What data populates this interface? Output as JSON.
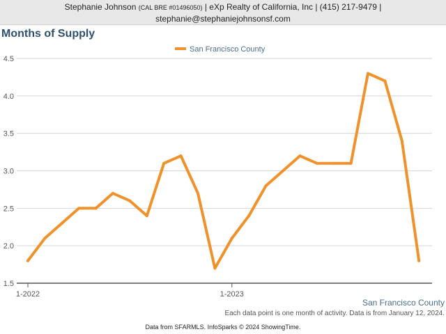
{
  "header": {
    "name": "Stephanie Johnson",
    "license": "(CAL BRE #01496050)",
    "rest_line1": "| eXp Realty of California, Inc | (415) 217-9479 |",
    "email": "stephanie@stephaniejohnsonsf.com"
  },
  "page_title": "Months of Supply",
  "region_label": "San Francisco County",
  "note": "Each data point is one month of activity. Data is from January 12, 2024.",
  "footer": "Data from SFARMLS. InfoSparks © 2024 ShowingTime.",
  "colors": {
    "series": "#f0922b",
    "grid": "#d4d4d4",
    "axis": "#555555"
  },
  "chart_data": {
    "type": "line",
    "title": "Months of Supply",
    "x": [
      "2022-01",
      "2022-02",
      "2022-03",
      "2022-04",
      "2022-05",
      "2022-06",
      "2022-07",
      "2022-08",
      "2022-09",
      "2022-10",
      "2022-11",
      "2022-12",
      "2023-01",
      "2023-02",
      "2023-03",
      "2023-04",
      "2023-05",
      "2023-06",
      "2023-07",
      "2023-08",
      "2023-09",
      "2023-10",
      "2023-11",
      "2023-12"
    ],
    "x_tick_labels": [
      {
        "x": "2022-01",
        "label": "1-2022"
      },
      {
        "x": "2023-01",
        "label": "1-2023"
      }
    ],
    "y_ticks": [
      "1.5",
      "2.0",
      "2.5",
      "3.0",
      "3.5",
      "4.0",
      "4.5"
    ],
    "ylim": [
      1.5,
      4.5
    ],
    "grid": true,
    "legend_position": "top-center",
    "series": [
      {
        "name": "San Francisco County",
        "values": [
          1.8,
          2.1,
          2.3,
          2.5,
          2.5,
          2.7,
          2.6,
          2.4,
          3.1,
          3.2,
          2.7,
          1.7,
          2.1,
          2.4,
          2.8,
          3.0,
          3.2,
          3.1,
          3.1,
          3.1,
          4.3,
          4.2,
          3.4,
          1.8
        ]
      }
    ]
  }
}
